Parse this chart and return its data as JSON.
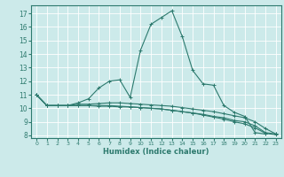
{
  "title": "",
  "xlabel": "Humidex (Indice chaleur)",
  "bg_color": "#cceaea",
  "grid_color": "#ffffff",
  "line_color": "#2d7a6e",
  "xlim": [
    -0.5,
    23.5
  ],
  "ylim": [
    7.8,
    17.6
  ],
  "xticks": [
    0,
    1,
    2,
    3,
    4,
    5,
    6,
    7,
    8,
    9,
    10,
    11,
    12,
    13,
    14,
    15,
    16,
    17,
    18,
    19,
    20,
    21,
    22,
    23
  ],
  "yticks": [
    8,
    9,
    10,
    11,
    12,
    13,
    14,
    15,
    16,
    17
  ],
  "series": [
    {
      "x": [
        0,
        1,
        2,
        3,
        4,
        5,
        6,
        7,
        8,
        9,
        10,
        11,
        12,
        13,
        14,
        15,
        16,
        17,
        18,
        19,
        20,
        21,
        22
      ],
      "y": [
        11.0,
        10.2,
        10.2,
        10.2,
        10.4,
        10.7,
        11.5,
        12.0,
        12.1,
        10.8,
        14.3,
        16.2,
        16.7,
        17.2,
        15.3,
        12.8,
        11.8,
        11.7,
        10.2,
        9.7,
        9.4,
        8.2,
        8.1
      ]
    },
    {
      "x": [
        0,
        1,
        2,
        3,
        4,
        5,
        6,
        7,
        8,
        9,
        10,
        11,
        12,
        13,
        14,
        15,
        16,
        17,
        18,
        19,
        20,
        21,
        22,
        23
      ],
      "y": [
        11.0,
        10.2,
        10.2,
        10.2,
        10.2,
        10.2,
        10.2,
        10.2,
        10.15,
        10.1,
        10.05,
        10.0,
        9.95,
        9.85,
        9.75,
        9.65,
        9.55,
        9.4,
        9.3,
        9.1,
        9.0,
        8.7,
        8.2,
        8.1
      ]
    },
    {
      "x": [
        0,
        1,
        2,
        3,
        4,
        5,
        6,
        7,
        8,
        9,
        10,
        11,
        12,
        13,
        14,
        15,
        16,
        17,
        18,
        19,
        20,
        21,
        22,
        23
      ],
      "y": [
        11.0,
        10.2,
        10.2,
        10.2,
        10.2,
        10.2,
        10.15,
        10.15,
        10.1,
        10.1,
        10.05,
        10.0,
        9.95,
        9.85,
        9.75,
        9.65,
        9.5,
        9.35,
        9.2,
        9.0,
        8.85,
        8.55,
        8.15,
        8.05
      ]
    },
    {
      "x": [
        0,
        1,
        2,
        3,
        4,
        5,
        6,
        7,
        8,
        9,
        10,
        11,
        12,
        13,
        14,
        15,
        16,
        17,
        18,
        19,
        20,
        21,
        22,
        23
      ],
      "y": [
        11.0,
        10.2,
        10.2,
        10.2,
        10.3,
        10.3,
        10.35,
        10.4,
        10.4,
        10.35,
        10.3,
        10.25,
        10.2,
        10.15,
        10.05,
        9.95,
        9.85,
        9.75,
        9.6,
        9.45,
        9.3,
        9.0,
        8.5,
        8.1
      ]
    }
  ]
}
